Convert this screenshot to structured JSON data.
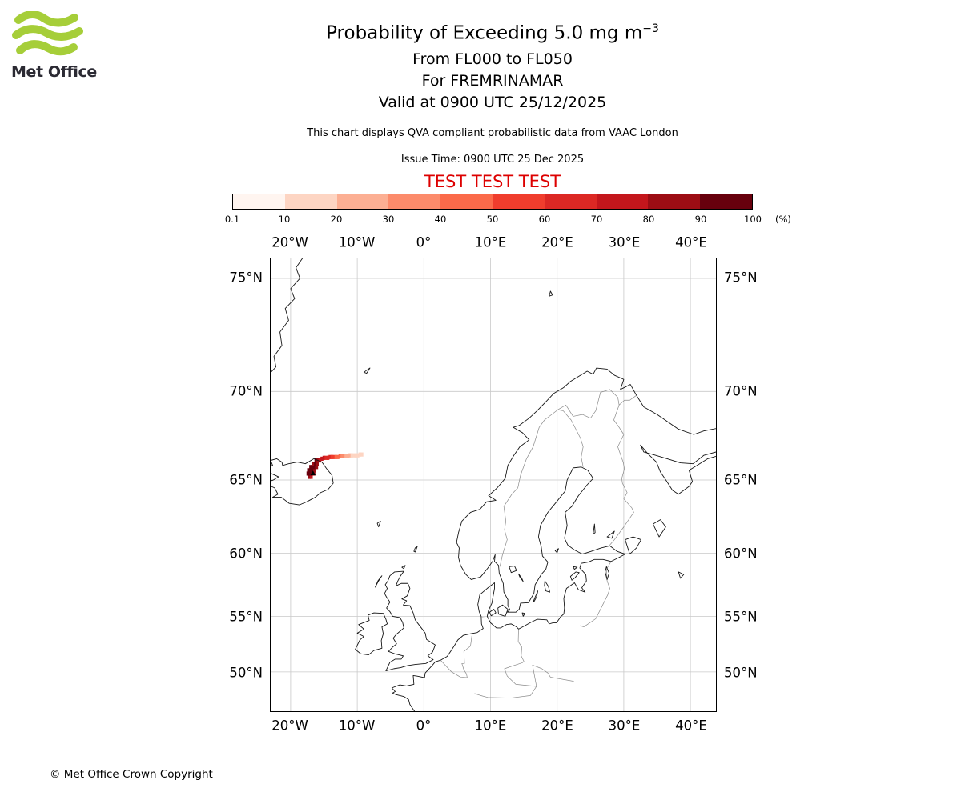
{
  "logo": {
    "brand": "Met Office",
    "color": "#a6ce39"
  },
  "header": {
    "title_main": "Probability of Exceeding 5.0 mg m",
    "title_exp": "−3",
    "subtitle_lines": [
      "From FL000 to FL050",
      "For FREMRINAMAR",
      "Valid at 0900 UTC 25/12/2025"
    ],
    "note": "This chart displays QVA compliant probabilistic data from VAAC London",
    "issue_time": "Issue Time: 0900 UTC 25 Dec 2025",
    "test_banner": "TEST TEST TEST",
    "test_color": "#dd0000"
  },
  "chart_data": {
    "type": "heatmap",
    "title": "Probability of Exceeding 5.0 mg m-3",
    "subtitle": "From FL000 to FL050 / For FREMRINAMAR / Valid at 0900 UTC 25/12/2025",
    "projection": "mercator",
    "grid": true,
    "lon_range": [
      -23.0,
      44.1
    ],
    "lat_range": [
      46.1,
      75.9
    ],
    "lon_ticks": [
      -20,
      -10,
      0,
      10,
      20,
      30,
      40
    ],
    "lon_tick_labels": [
      "20°W",
      "10°W",
      "0°",
      "10°E",
      "20°E",
      "30°E",
      "40°E"
    ],
    "lat_ticks": [
      75,
      70,
      65,
      60,
      55,
      50
    ],
    "lat_tick_labels": [
      "75°N",
      "70°N",
      "65°N",
      "60°N",
      "55°N",
      "50°N"
    ],
    "colorbar": {
      "unit": "(%)",
      "orientation": "horizontal",
      "boundaries_pct": [
        0.1,
        10,
        20,
        30,
        40,
        50,
        60,
        70,
        80,
        90,
        100
      ],
      "tick_labels": [
        "0.1",
        "10",
        "20",
        "30",
        "40",
        "50",
        "60",
        "70",
        "80",
        "90",
        "100"
      ],
      "colors": [
        "#fff5f0",
        "#fdd5c3",
        "#fcaf93",
        "#fc8b6b",
        "#fb6a4a",
        "#f03d2d",
        "#dc2824",
        "#c4161c",
        "#9c0d14",
        "#67000d"
      ]
    },
    "volcano": {
      "name": "FREMRINAMAR",
      "lon": -16.65,
      "lat": 65.43
    },
    "plume_cells_format": "lon_deg_east, lat_deg_north, probability_pct",
    "plume_cells": [
      [
        -17.2,
        65.2,
        82
      ],
      [
        -16.9,
        65.2,
        78
      ],
      [
        -17.4,
        65.4,
        90
      ],
      [
        -17.1,
        65.4,
        97
      ],
      [
        -16.8,
        65.4,
        92
      ],
      [
        -16.5,
        65.4,
        80
      ],
      [
        -17.3,
        65.6,
        94
      ],
      [
        -17.0,
        65.6,
        99
      ],
      [
        -16.7,
        65.6,
        96
      ],
      [
        -16.4,
        65.6,
        86
      ],
      [
        -17.0,
        65.8,
        92
      ],
      [
        -16.7,
        65.8,
        97
      ],
      [
        -16.4,
        65.8,
        90
      ],
      [
        -16.1,
        65.8,
        80
      ],
      [
        -16.6,
        66.0,
        88
      ],
      [
        -16.3,
        66.0,
        93
      ],
      [
        -16.0,
        66.0,
        84
      ],
      [
        -16.2,
        66.2,
        90
      ],
      [
        -15.9,
        66.2,
        84
      ],
      [
        -15.6,
        66.2,
        78
      ],
      [
        -15.3,
        66.3,
        75
      ],
      [
        -15.0,
        66.35,
        71
      ],
      [
        -14.7,
        66.35,
        67
      ],
      [
        -14.4,
        66.35,
        64
      ],
      [
        -14.1,
        66.4,
        60
      ],
      [
        -13.8,
        66.4,
        56
      ],
      [
        -13.5,
        66.4,
        52
      ],
      [
        -13.2,
        66.4,
        48
      ],
      [
        -12.9,
        66.4,
        44
      ],
      [
        -12.6,
        66.45,
        40
      ],
      [
        -12.3,
        66.45,
        36
      ],
      [
        -12.0,
        66.45,
        32
      ],
      [
        -11.7,
        66.45,
        28
      ],
      [
        -11.4,
        66.45,
        24
      ],
      [
        -11.1,
        66.5,
        22
      ],
      [
        -10.8,
        66.5,
        19
      ],
      [
        -10.5,
        66.5,
        16
      ],
      [
        -10.2,
        66.5,
        14
      ],
      [
        -9.9,
        66.5,
        12
      ],
      [
        -9.6,
        66.55,
        11
      ],
      [
        -9.3,
        66.55,
        10.5
      ]
    ]
  },
  "footer": {
    "copyright": "© Met Office Crown Copyright"
  }
}
